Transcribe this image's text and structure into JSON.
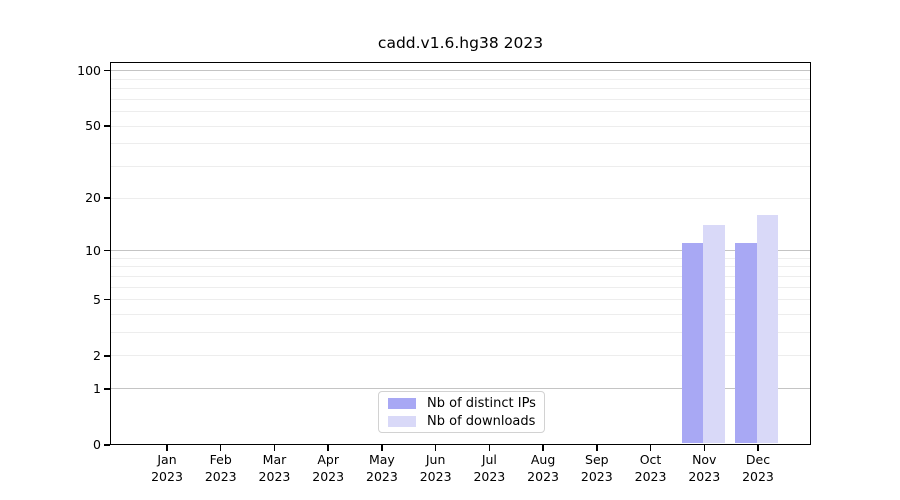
{
  "title": "cadd.v1.6.hg38 2023",
  "legend": {
    "items": [
      {
        "label": "Nb of distinct IPs",
        "color": "#a8a8f4"
      },
      {
        "label": "Nb of downloads",
        "color": "#d9d9f8"
      }
    ]
  },
  "colors": {
    "series_distinct_ips": "#a8a8f4",
    "series_downloads": "#d9d9f8",
    "major_gridline": "#c4c4c4",
    "minor_gridline": "#ededed",
    "axis": "#000000",
    "background": "#ffffff"
  },
  "chart_data": {
    "type": "bar",
    "title": "cadd.v1.6.hg38 2023",
    "xlabel": "",
    "ylabel": "",
    "categories": [
      "Jan 2023",
      "Feb 2023",
      "Mar 2023",
      "Apr 2023",
      "May 2023",
      "Jun 2023",
      "Jul 2023",
      "Aug 2023",
      "Sep 2023",
      "Oct 2023",
      "Nov 2023",
      "Dec 2023"
    ],
    "series": [
      {
        "name": "Nb of distinct IPs",
        "color": "#a8a8f4",
        "values": [
          0,
          0,
          0,
          0,
          0,
          0,
          0,
          0,
          0,
          0,
          11,
          11
        ]
      },
      {
        "name": "Nb of downloads",
        "color": "#d9d9f8",
        "values": [
          0,
          0,
          0,
          0,
          0,
          0,
          0,
          0,
          0,
          0,
          14,
          16
        ]
      }
    ],
    "yscale": "log1p",
    "y_ticks": [
      0,
      1,
      2,
      5,
      10,
      20,
      50,
      100
    ],
    "y_major_gridlines": [
      1,
      10,
      100
    ],
    "y_minor_gridlines": [
      2,
      3,
      4,
      5,
      6,
      7,
      8,
      9,
      20,
      30,
      40,
      50,
      60,
      70,
      80,
      90
    ],
    "ylim": [
      0,
      111
    ],
    "grid": true,
    "legend_position": "lower center"
  }
}
